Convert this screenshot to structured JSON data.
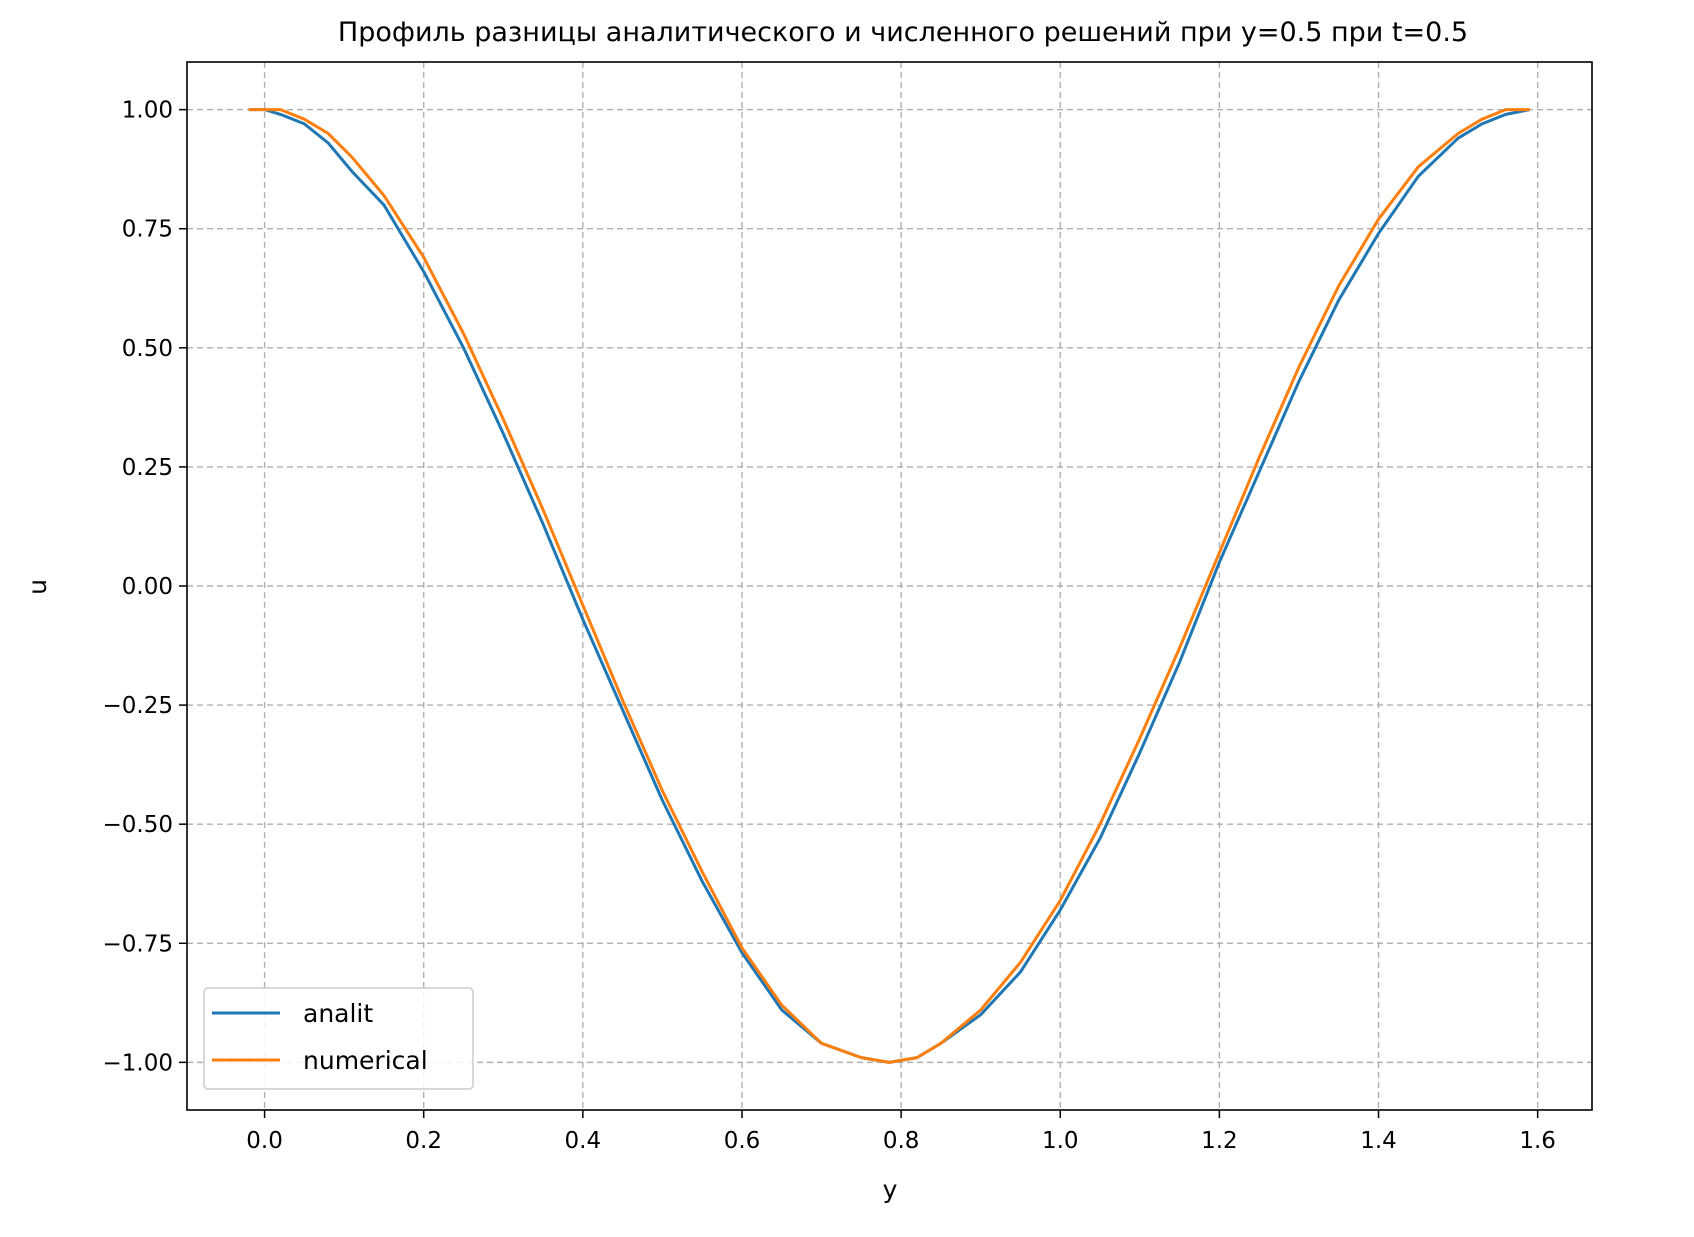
{
  "chart_data": {
    "type": "line",
    "title": "Профиль разницы аналитического и численного решений при y=0.5  при t=0.5",
    "xlabel": "y",
    "ylabel": "u",
    "xlim": [
      -0.0975,
      1.6683
    ],
    "ylim": [
      -1.1,
      1.1
    ],
    "xticks": [
      0.0,
      0.2,
      0.4,
      0.6,
      0.8,
      1.0,
      1.2,
      1.4,
      1.6
    ],
    "xtick_labels": [
      "0.0",
      "0.2",
      "0.4",
      "0.6",
      "0.8",
      "1.0",
      "1.2",
      "1.4",
      "1.6"
    ],
    "yticks": [
      1.0,
      0.75,
      0.5,
      0.25,
      0.0,
      -0.25,
      -0.5,
      -0.75,
      -1.0
    ],
    "ytick_labels": [
      "1.00",
      "0.75",
      "0.50",
      "0.25",
      "0.00",
      "−0.25",
      "−0.50",
      "−0.75",
      "−1.00"
    ],
    "grid": true,
    "grid_style": "dashed",
    "legend_position": "lower-left",
    "series": [
      {
        "name": "analit",
        "color": "#1f77b4",
        "x": [
          -0.02,
          0.0,
          0.02,
          0.05,
          0.08,
          0.11,
          0.15,
          0.2,
          0.25,
          0.3,
          0.35,
          0.4,
          0.45,
          0.5,
          0.55,
          0.6,
          0.65,
          0.7,
          0.75,
          0.785,
          0.82,
          0.85,
          0.9,
          0.95,
          1.0,
          1.05,
          1.1,
          1.15,
          1.2,
          1.25,
          1.3,
          1.35,
          1.4,
          1.45,
          1.5,
          1.53,
          1.56,
          1.59
        ],
        "y": [
          1.0,
          1.0,
          0.99,
          0.97,
          0.93,
          0.87,
          0.8,
          0.66,
          0.5,
          0.32,
          0.13,
          -0.07,
          -0.26,
          -0.45,
          -0.62,
          -0.77,
          -0.89,
          -0.96,
          -0.99,
          -1.0,
          -0.99,
          -0.96,
          -0.9,
          -0.81,
          -0.68,
          -0.53,
          -0.35,
          -0.16,
          0.05,
          0.24,
          0.43,
          0.6,
          0.74,
          0.86,
          0.94,
          0.97,
          0.99,
          1.0
        ]
      },
      {
        "name": "numerical",
        "color": "#ff7f0e",
        "x": [
          -0.02,
          0.0,
          0.02,
          0.05,
          0.08,
          0.11,
          0.15,
          0.2,
          0.25,
          0.3,
          0.35,
          0.4,
          0.45,
          0.5,
          0.55,
          0.6,
          0.65,
          0.7,
          0.75,
          0.785,
          0.82,
          0.85,
          0.9,
          0.95,
          1.0,
          1.05,
          1.1,
          1.15,
          1.2,
          1.25,
          1.3,
          1.35,
          1.4,
          1.45,
          1.5,
          1.53,
          1.56,
          1.59
        ],
        "y": [
          1.0,
          1.0,
          1.0,
          0.98,
          0.95,
          0.9,
          0.82,
          0.69,
          0.53,
          0.35,
          0.16,
          -0.04,
          -0.24,
          -0.43,
          -0.6,
          -0.76,
          -0.88,
          -0.96,
          -0.99,
          -1.0,
          -0.99,
          -0.96,
          -0.89,
          -0.79,
          -0.66,
          -0.5,
          -0.32,
          -0.13,
          0.07,
          0.27,
          0.46,
          0.63,
          0.77,
          0.88,
          0.95,
          0.98,
          1.0,
          1.0
        ]
      }
    ]
  }
}
